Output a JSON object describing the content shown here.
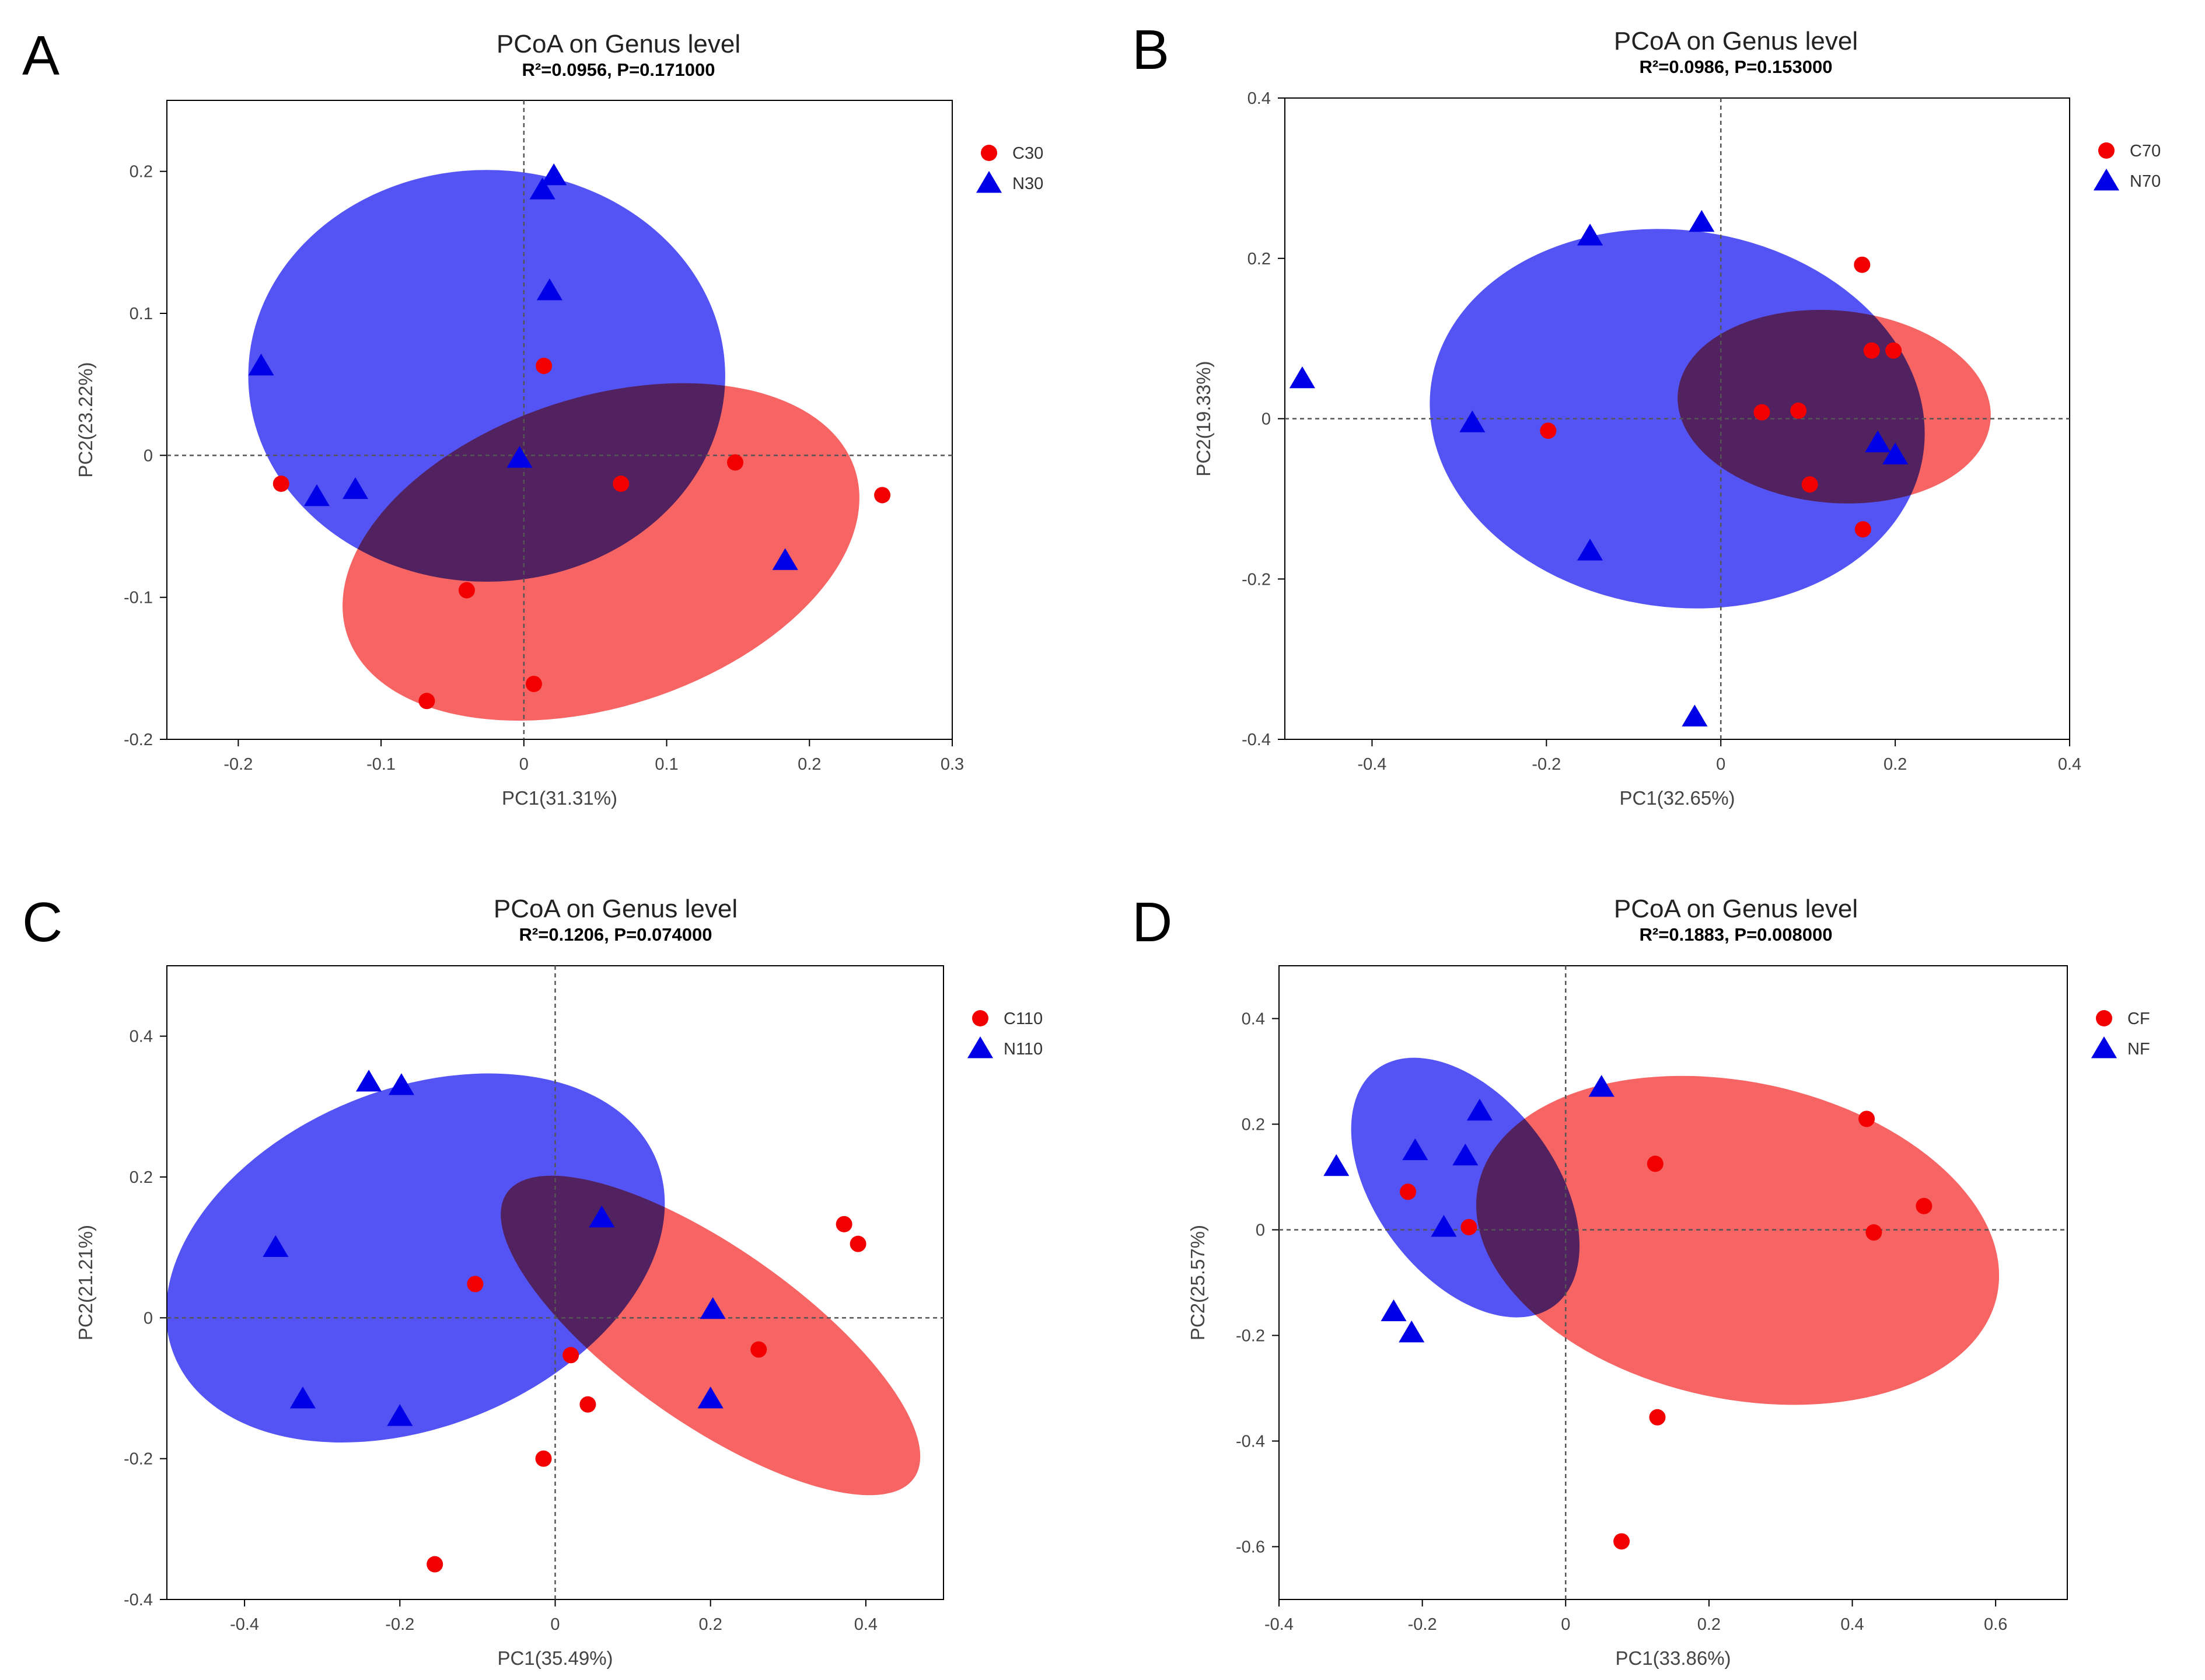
{
  "figure": {
    "colors": {
      "group1": "#f20000",
      "group2": "#0000e6",
      "ellipse1": "#f76464",
      "ellipse2": "#5454f5",
      "overlap": "#a63c79"
    }
  },
  "chart_data": [
    {
      "panel": "A",
      "type": "scatter",
      "title": "PCoA on Genus level",
      "subtitle": "R²=0.0956, P=0.171000",
      "xlabel": "PC1(31.31%)",
      "ylabel": "PC2(23.22%)",
      "xlim": [
        -0.25,
        0.3
      ],
      "ylim": [
        -0.2,
        0.25
      ],
      "xticks": [
        -0.2,
        -0.1,
        0,
        0.1,
        0.2,
        0.3
      ],
      "xtick_labels": [
        "-0.2",
        "-0.1",
        "0",
        "0.1",
        "0.2",
        "0.3"
      ],
      "yticks": [
        -0.2,
        -0.1,
        0,
        0.1,
        0.2
      ],
      "ytick_labels": [
        "-0.2",
        "-0.1",
        "0",
        "0.1",
        "0.2"
      ],
      "legend_position": "top-right",
      "series": [
        {
          "name": "C30",
          "marker": "circle",
          "color": "#f20000",
          "points": [
            [
              0.014,
              0.063
            ],
            [
              -0.17,
              -0.02
            ],
            [
              0.068,
              -0.02
            ],
            [
              0.148,
              -0.005
            ],
            [
              0.251,
              -0.028
            ],
            [
              -0.04,
              -0.095
            ],
            [
              0.007,
              -0.161
            ],
            [
              -0.068,
              -0.173
            ]
          ]
        },
        {
          "name": "N30",
          "marker": "triangle",
          "color": "#0000e6",
          "points": [
            [
              0.021,
              0.197
            ],
            [
              0.013,
              0.187
            ],
            [
              0.018,
              0.116
            ],
            [
              -0.184,
              0.063
            ],
            [
              -0.003,
              -0.002
            ],
            [
              -0.145,
              -0.029
            ],
            [
              -0.118,
              -0.024
            ],
            [
              0.183,
              -0.074
            ]
          ]
        }
      ],
      "ellipses": [
        {
          "group": "N30",
          "cx": -0.026,
          "cy": 0.056,
          "rx": 0.167,
          "ry": 0.145,
          "angle": 0
        },
        {
          "group": "C30",
          "cx": 0.054,
          "cy": -0.068,
          "rx": 0.187,
          "ry": 0.109,
          "angle": 18
        }
      ]
    },
    {
      "panel": "B",
      "type": "scatter",
      "title": "PCoA on Genus level",
      "subtitle": "R²=0.0986, P=0.153000",
      "xlabel": "PC1(32.65%)",
      "ylabel": "PC2(19.33%)",
      "xlim": [
        -0.5,
        0.4
      ],
      "ylim": [
        -0.4,
        0.4
      ],
      "xticks": [
        -0.4,
        -0.2,
        0,
        0.2,
        0.4
      ],
      "xtick_labels": [
        "-0.4",
        "-0.2",
        "0",
        "0.2",
        "0.4"
      ],
      "yticks": [
        -0.4,
        -0.2,
        0,
        0.2,
        0.4
      ],
      "ytick_labels": [
        "-0.4",
        "-0.2",
        "0",
        "0.2",
        "0.4"
      ],
      "legend_position": "top-right",
      "series": [
        {
          "name": "C70",
          "marker": "circle",
          "color": "#f20000",
          "points": [
            [
              0.162,
              0.192
            ],
            [
              0.173,
              0.085
            ],
            [
              0.198,
              0.085
            ],
            [
              0.047,
              0.008
            ],
            [
              0.089,
              0.01
            ],
            [
              -0.198,
              -0.015
            ],
            [
              0.102,
              -0.082
            ],
            [
              0.163,
              -0.138
            ]
          ]
        },
        {
          "name": "N70",
          "marker": "triangle",
          "color": "#0000e6",
          "points": [
            [
              -0.022,
              0.245
            ],
            [
              -0.15,
              0.228
            ],
            [
              -0.48,
              0.05
            ],
            [
              -0.285,
              -0.005
            ],
            [
              0.18,
              -0.03
            ],
            [
              0.2,
              -0.045
            ],
            [
              -0.15,
              -0.165
            ],
            [
              -0.03,
              -0.372
            ]
          ]
        }
      ],
      "ellipses": [
        {
          "group": "N70",
          "cx": -0.05,
          "cy": 0.0,
          "rx": 0.285,
          "ry": 0.235,
          "angle": -8
        },
        {
          "group": "C70",
          "cx": 0.13,
          "cy": 0.015,
          "rx": 0.18,
          "ry": 0.12,
          "angle": -5
        }
      ]
    },
    {
      "panel": "C",
      "type": "scatter",
      "title": "PCoA on Genus level",
      "subtitle": "R²=0.1206, P=0.074000",
      "xlabel": "PC1(35.49%)",
      "ylabel": "PC2(21.21%)",
      "xlim": [
        -0.5,
        0.5
      ],
      "ylim": [
        -0.4,
        0.5
      ],
      "xticks": [
        -0.4,
        -0.2,
        0,
        0.2,
        0.4
      ],
      "xtick_labels": [
        "-0.4",
        "-0.2",
        "0",
        "0.2",
        "0.4"
      ],
      "yticks": [
        -0.4,
        -0.2,
        0,
        0.2,
        0.4
      ],
      "ytick_labels": [
        "-0.4",
        "-0.2",
        "0",
        "0.2",
        "0.4"
      ],
      "legend_position": "top-right",
      "series": [
        {
          "name": "C110",
          "marker": "circle",
          "color": "#f20000",
          "points": [
            [
              0.372,
              0.133
            ],
            [
              0.39,
              0.105
            ],
            [
              -0.103,
              0.048
            ],
            [
              0.02,
              -0.053
            ],
            [
              0.262,
              -0.045
            ],
            [
              0.042,
              -0.123
            ],
            [
              -0.015,
              -0.2
            ],
            [
              -0.155,
              -0.35
            ]
          ]
        },
        {
          "name": "N110",
          "marker": "triangle",
          "color": "#0000e6",
          "points": [
            [
              -0.24,
              0.335
            ],
            [
              -0.198,
              0.33
            ],
            [
              0.06,
              0.142
            ],
            [
              -0.36,
              0.1
            ],
            [
              0.203,
              0.012
            ],
            [
              -0.325,
              -0.115
            ],
            [
              -0.2,
              -0.14
            ],
            [
              0.2,
              -0.115
            ]
          ]
        }
      ],
      "ellipses": [
        {
          "group": "N110",
          "cx": -0.18,
          "cy": 0.085,
          "rx": 0.335,
          "ry": 0.24,
          "angle": 22
        },
        {
          "group": "C110",
          "cx": 0.2,
          "cy": -0.025,
          "rx": 0.32,
          "ry": 0.125,
          "angle": -35
        }
      ]
    },
    {
      "panel": "D",
      "type": "scatter",
      "title": "PCoA on Genus level",
      "subtitle": "R²=0.1883, P=0.008000",
      "xlabel": "PC1(33.86%)",
      "ylabel": "PC2(25.57%)",
      "xlim": [
        -0.4,
        0.7
      ],
      "ylim": [
        -0.7,
        0.5
      ],
      "xticks": [
        -0.4,
        -0.2,
        0,
        0.2,
        0.4,
        0.6
      ],
      "xtick_labels": [
        "-0.4",
        "-0.2",
        "0",
        "0.2",
        "0.4",
        "0.6"
      ],
      "yticks": [
        -0.6,
        -0.4,
        -0.2,
        0,
        0.2,
        0.4
      ],
      "ytick_labels": [
        "-0.6",
        "-0.4",
        "-0.2",
        "0",
        "0.2",
        "0.4"
      ],
      "legend_position": "top-right",
      "series": [
        {
          "name": "CF",
          "marker": "circle",
          "color": "#f20000",
          "points": [
            [
              0.42,
              0.21
            ],
            [
              0.5,
              0.045
            ],
            [
              0.43,
              -0.005
            ],
            [
              0.125,
              0.125
            ],
            [
              -0.22,
              0.072
            ],
            [
              -0.135,
              0.005
            ],
            [
              0.128,
              -0.355
            ],
            [
              0.078,
              -0.59
            ]
          ]
        },
        {
          "name": "NF",
          "marker": "triangle",
          "color": "#0000e6",
          "points": [
            [
              0.05,
              0.27
            ],
            [
              -0.32,
              0.12
            ],
            [
              -0.21,
              0.15
            ],
            [
              -0.12,
              0.225
            ],
            [
              -0.14,
              0.14
            ],
            [
              -0.17,
              0.005
            ],
            [
              -0.24,
              -0.155
            ],
            [
              -0.215,
              -0.195
            ]
          ]
        }
      ],
      "ellipses": [
        {
          "group": "CF",
          "cx": 0.24,
          "cy": -0.02,
          "rx": 0.37,
          "ry": 0.3,
          "angle": -12
        },
        {
          "group": "NF",
          "cx": -0.14,
          "cy": 0.08,
          "rx": 0.125,
          "ry": 0.28,
          "angle": 37
        }
      ]
    }
  ]
}
